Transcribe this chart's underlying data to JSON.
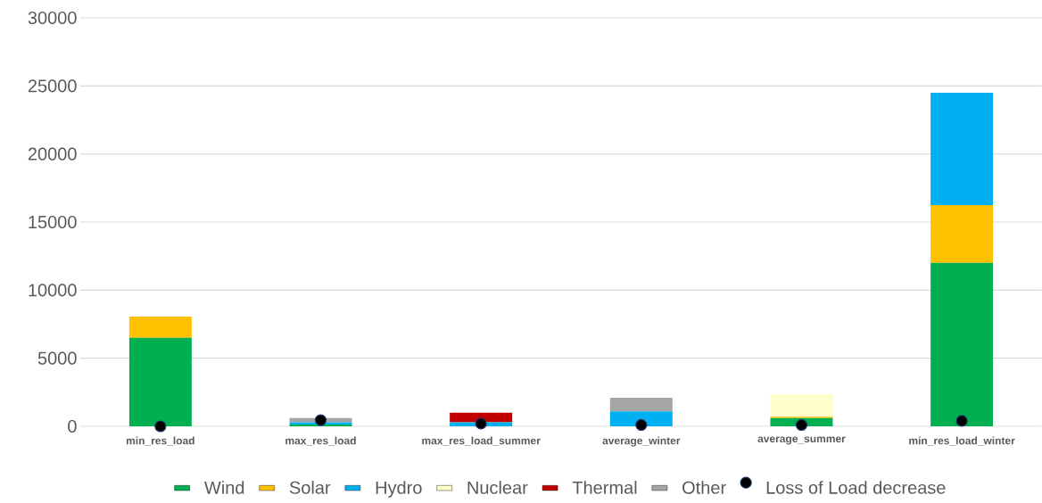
{
  "chart_data": {
    "type": "bar",
    "stacked": true,
    "categories": [
      "min_res_load",
      "max_res_load",
      "max_res_load_summer",
      "average_winter",
      "average_summer",
      "min_res_load_winter"
    ],
    "series": [
      {
        "name": "Wind",
        "color": "#00b050",
        "values": [
          6500,
          130,
          0,
          0,
          600,
          12000
        ]
      },
      {
        "name": "Solar",
        "color": "#ffc000",
        "values": [
          1550,
          0,
          0,
          0,
          100,
          4250
        ]
      },
      {
        "name": "Hydro",
        "color": "#00b0f0",
        "values": [
          0,
          170,
          300,
          1100,
          0,
          8250
        ]
      },
      {
        "name": "Nuclear",
        "color": "#ffffcc",
        "values": [
          0,
          0,
          0,
          0,
          1650,
          0
        ]
      },
      {
        "name": "Thermal",
        "color": "#c00000",
        "values": [
          0,
          0,
          700,
          0,
          0,
          0
        ]
      },
      {
        "name": "Other",
        "color": "#a5a5a5",
        "values": [
          0,
          300,
          0,
          1000,
          0,
          0
        ]
      },
      {
        "name": "Loss of Load decrease",
        "type": "scatter",
        "color": "#000000",
        "values": [
          0,
          450,
          200,
          100,
          100,
          400
        ]
      }
    ],
    "ylim": [
      0,
      30000
    ],
    "yticks": [
      0,
      5000,
      10000,
      15000,
      20000,
      25000,
      30000
    ],
    "grid": "y",
    "legend": "bottom"
  }
}
